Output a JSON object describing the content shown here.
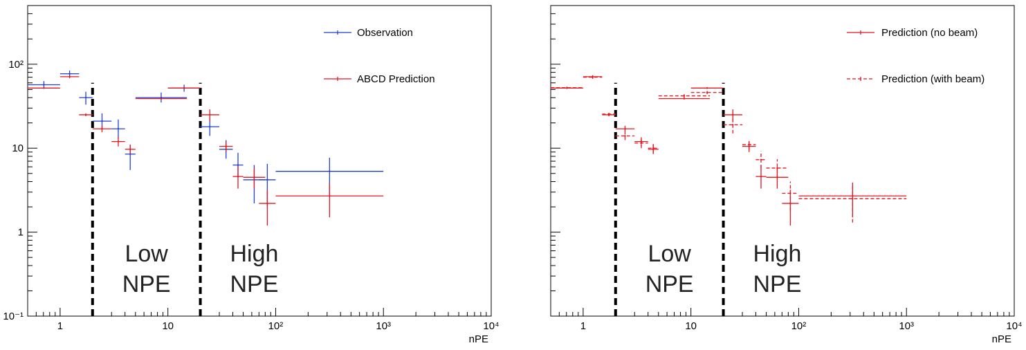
{
  "colors": {
    "observation": "#1f3fd8",
    "prediction": "#e8141e",
    "axis": "#000000",
    "divider": "#000000"
  },
  "chart_data": [
    {
      "type": "scatter",
      "title": "",
      "xlabel": "nPE",
      "ylabel": "",
      "xscale": "log",
      "yscale": "log",
      "xlim": [
        0.5,
        10000
      ],
      "ylim": [
        0.1,
        500
      ],
      "grid": false,
      "legend_position": "top-right",
      "x_tick_labels": [
        "1",
        "10",
        "10²",
        "10³",
        "10⁴"
      ],
      "y_tick_labels": [
        "10⁻¹",
        "1",
        "10",
        "10²"
      ],
      "region_boundaries": [
        2,
        20
      ],
      "region_labels": [
        {
          "lines": [
            "Low",
            "NPE"
          ]
        },
        {
          "lines": [
            "High",
            "NPE"
          ]
        }
      ],
      "series": [
        {
          "name": "Observation",
          "color_key": "observation",
          "style": "solid",
          "points": [
            {
              "xlo": 0.5,
              "xhi": 1.0,
              "y": 57,
              "ylo": 52,
              "yhi": 63
            },
            {
              "xlo": 1.0,
              "xhi": 1.5,
              "y": 77,
              "ylo": 71,
              "yhi": 84
            },
            {
              "xlo": 1.5,
              "xhi": 2.0,
              "y": 40,
              "ylo": 33,
              "yhi": 47
            },
            {
              "xlo": 2.0,
              "xhi": 3.0,
              "y": 21,
              "ylo": 17,
              "yhi": 26
            },
            {
              "xlo": 3.0,
              "xhi": 4.0,
              "y": 17,
              "ylo": 13,
              "yhi": 22
            },
            {
              "xlo": 4.0,
              "xhi": 5.0,
              "y": 8.5,
              "ylo": 5.5,
              "yhi": 11
            },
            {
              "xlo": 5.0,
              "xhi": 15.0,
              "y": 40,
              "ylo": 35,
              "yhi": 46
            },
            {
              "xlo": 10.0,
              "xhi": 20.0,
              "y": 52,
              "ylo": 47,
              "yhi": 57
            },
            {
              "xlo": 20.0,
              "xhi": 30.0,
              "y": 18,
              "ylo": 14,
              "yhi": 23
            },
            {
              "xlo": 30.0,
              "xhi": 40.0,
              "y": 9.7,
              "ylo": 7.5,
              "yhi": 12.5
            },
            {
              "xlo": 40.0,
              "xhi": 50.0,
              "y": 6.3,
              "ylo": 4.5,
              "yhi": 8.8
            },
            {
              "xlo": 50.0,
              "xhi": 80.0,
              "y": 4.2,
              "ylo": 2.2,
              "yhi": 6.3
            },
            {
              "xlo": 70.0,
              "xhi": 100.0,
              "y": 4.2,
              "ylo": 2.0,
              "yhi": 6.5
            },
            {
              "xlo": 100.0,
              "xhi": 1000.0,
              "y": 5.3,
              "ylo": 2.8,
              "yhi": 7.7
            }
          ]
        },
        {
          "name": "ABCD Prediction",
          "color_key": "prediction",
          "style": "solid",
          "points": [
            {
              "xlo": 0.5,
              "xhi": 1.0,
              "y": 52,
              "ylo": 51,
              "yhi": 53
            },
            {
              "xlo": 1.0,
              "xhi": 1.5,
              "y": 71,
              "ylo": 68,
              "yhi": 74
            },
            {
              "xlo": 1.5,
              "xhi": 2.0,
              "y": 25,
              "ylo": 24,
              "yhi": 26
            },
            {
              "xlo": 2.0,
              "xhi": 3.0,
              "y": 17,
              "ylo": 15.5,
              "yhi": 18.5
            },
            {
              "xlo": 3.0,
              "xhi": 4.0,
              "y": 12,
              "ylo": 10.5,
              "yhi": 13.5
            },
            {
              "xlo": 4.0,
              "xhi": 5.0,
              "y": 9.7,
              "ylo": 8.5,
              "yhi": 11
            },
            {
              "xlo": 5.0,
              "xhi": 15.0,
              "y": 39,
              "ylo": 38,
              "yhi": 40
            },
            {
              "xlo": 10.0,
              "xhi": 20.0,
              "y": 52,
              "ylo": 51,
              "yhi": 53
            },
            {
              "xlo": 20.0,
              "xhi": 30.0,
              "y": 25,
              "ylo": 21,
              "yhi": 29
            },
            {
              "xlo": 30.0,
              "xhi": 40.0,
              "y": 10.5,
              "ylo": 9,
              "yhi": 12
            },
            {
              "xlo": 40.0,
              "xhi": 50.0,
              "y": 4.6,
              "ylo": 3.3,
              "yhi": 6.2
            },
            {
              "xlo": 50.0,
              "xhi": 80.0,
              "y": 4.5,
              "ylo": 3.3,
              "yhi": 5.8
            },
            {
              "xlo": 70.0,
              "xhi": 100.0,
              "y": 2.2,
              "ylo": 1.2,
              "yhi": 3.2
            },
            {
              "xlo": 100.0,
              "xhi": 1000.0,
              "y": 2.7,
              "ylo": 1.5,
              "yhi": 3.8
            }
          ]
        }
      ]
    },
    {
      "type": "scatter",
      "title": "",
      "xlabel": "nPE",
      "ylabel": "",
      "xscale": "log",
      "yscale": "log",
      "xlim": [
        0.5,
        10000
      ],
      "ylim": [
        0.1,
        500
      ],
      "grid": false,
      "legend_position": "top-right",
      "x_tick_labels": [
        "1",
        "10",
        "10²",
        "10³",
        "10⁴"
      ],
      "y_tick_labels": [],
      "region_boundaries": [
        2,
        20
      ],
      "region_labels": [
        {
          "lines": [
            "Low",
            "NPE"
          ]
        },
        {
          "lines": [
            "High",
            "NPE"
          ]
        }
      ],
      "series": [
        {
          "name": "Prediction (no beam)",
          "color_key": "prediction",
          "style": "solid",
          "points": [
            {
              "xlo": 0.5,
              "xhi": 1.0,
              "y": 52,
              "ylo": 51,
              "yhi": 53
            },
            {
              "xlo": 1.0,
              "xhi": 1.5,
              "y": 71,
              "ylo": 68,
              "yhi": 74
            },
            {
              "xlo": 1.5,
              "xhi": 2.0,
              "y": 25,
              "ylo": 24,
              "yhi": 26
            },
            {
              "xlo": 2.0,
              "xhi": 3.0,
              "y": 17,
              "ylo": 15.5,
              "yhi": 18.5
            },
            {
              "xlo": 3.0,
              "xhi": 4.0,
              "y": 12,
              "ylo": 10.5,
              "yhi": 13.5
            },
            {
              "xlo": 4.0,
              "xhi": 5.0,
              "y": 9.7,
              "ylo": 8.5,
              "yhi": 11
            },
            {
              "xlo": 5.0,
              "xhi": 15.0,
              "y": 39,
              "ylo": 38,
              "yhi": 40
            },
            {
              "xlo": 10.0,
              "xhi": 20.0,
              "y": 52,
              "ylo": 51,
              "yhi": 53
            },
            {
              "xlo": 20.0,
              "xhi": 30.0,
              "y": 25,
              "ylo": 21,
              "yhi": 29
            },
            {
              "xlo": 30.0,
              "xhi": 40.0,
              "y": 10.5,
              "ylo": 9,
              "yhi": 12
            },
            {
              "xlo": 40.0,
              "xhi": 50.0,
              "y": 4.6,
              "ylo": 3.3,
              "yhi": 6.2
            },
            {
              "xlo": 50.0,
              "xhi": 80.0,
              "y": 4.5,
              "ylo": 3.3,
              "yhi": 5.8
            },
            {
              "xlo": 70.0,
              "xhi": 100.0,
              "y": 2.2,
              "ylo": 1.2,
              "yhi": 3.2
            },
            {
              "xlo": 100.0,
              "xhi": 1000.0,
              "y": 2.7,
              "ylo": 1.5,
              "yhi": 3.8
            }
          ]
        },
        {
          "name": "Prediction (with beam)",
          "color_key": "prediction",
          "style": "dashed",
          "points": [
            {
              "xlo": 0.5,
              "xhi": 1.0,
              "y": 52.5,
              "ylo": 51,
              "yhi": 54
            },
            {
              "xlo": 1.0,
              "xhi": 1.5,
              "y": 70,
              "ylo": 67,
              "yhi": 73
            },
            {
              "xlo": 1.5,
              "xhi": 2.0,
              "y": 25.5,
              "ylo": 24,
              "yhi": 27
            },
            {
              "xlo": 2.0,
              "xhi": 3.0,
              "y": 14,
              "ylo": 12.5,
              "yhi": 15.5
            },
            {
              "xlo": 3.0,
              "xhi": 4.0,
              "y": 11.5,
              "ylo": 10,
              "yhi": 13
            },
            {
              "xlo": 4.0,
              "xhi": 5.0,
              "y": 10,
              "ylo": 8.8,
              "yhi": 11.2
            },
            {
              "xlo": 5.0,
              "xhi": 15.0,
              "y": 42,
              "ylo": 40,
              "yhi": 44
            },
            {
              "xlo": 10.0,
              "xhi": 20.0,
              "y": 46,
              "ylo": 44,
              "yhi": 48
            },
            {
              "xlo": 20.0,
              "xhi": 30.0,
              "y": 19,
              "ylo": 15,
              "yhi": 23
            },
            {
              "xlo": 30.0,
              "xhi": 40.0,
              "y": 11,
              "ylo": 9.5,
              "yhi": 12.5
            },
            {
              "xlo": 40.0,
              "xhi": 50.0,
              "y": 7.3,
              "ylo": 5.8,
              "yhi": 9.2
            },
            {
              "xlo": 50.0,
              "xhi": 80.0,
              "y": 5.8,
              "ylo": 4.4,
              "yhi": 7.4
            },
            {
              "xlo": 70.0,
              "xhi": 100.0,
              "y": 2.9,
              "ylo": 1.8,
              "yhi": 4.0
            },
            {
              "xlo": 100.0,
              "xhi": 1000.0,
              "y": 2.5,
              "ylo": 1.3,
              "yhi": 3.9
            }
          ]
        }
      ]
    }
  ]
}
